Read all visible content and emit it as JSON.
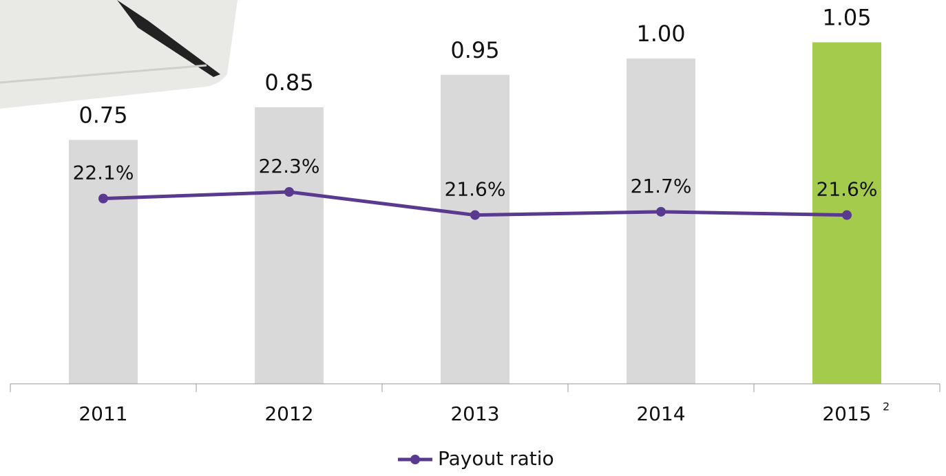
{
  "chart_data": {
    "type": "bar-line",
    "categories": [
      "2011",
      "2012",
      "2013",
      "2014",
      "2015"
    ],
    "category_notes": [
      null,
      null,
      null,
      null,
      "2"
    ],
    "bars": {
      "values": [
        0.75,
        0.85,
        0.95,
        1.0,
        1.05
      ],
      "value_labels": [
        "0.75",
        "0.85",
        "0.95",
        "1.00",
        "1.05"
      ],
      "colors": [
        "#d9d9d9",
        "#d9d9d9",
        "#d9d9d9",
        "#d9d9d9",
        "#a5cb4c"
      ]
    },
    "ylim": [
      0,
      1.18
    ],
    "series": [
      {
        "name": "Payout ratio",
        "color": "#5a3a8e",
        "axis": "y2",
        "values": [
          22.1,
          22.3,
          21.6,
          21.7,
          21.6
        ],
        "value_labels": [
          "22.1%",
          "22.3%",
          "21.6%",
          "21.7%",
          "21.6%"
        ]
      }
    ],
    "y2lim": [
      16.5,
      28.1
    ],
    "legend": "bottom"
  }
}
